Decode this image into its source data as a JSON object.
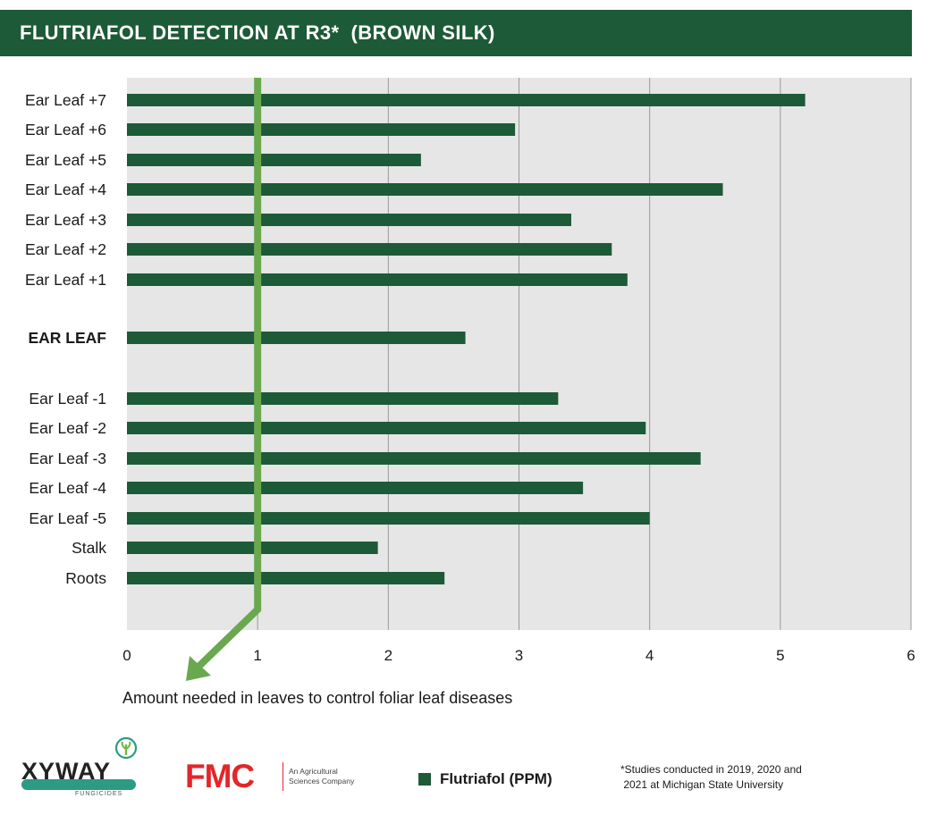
{
  "header": {
    "title": "FLUTRIAFOL DETECTION AT R3*  (BROWN SILK)"
  },
  "chart_data": {
    "type": "bar",
    "orientation": "horizontal",
    "title": "FLUTRIAFOL DETECTION AT R3*  (BROWN SILK)",
    "categories": [
      "Ear Leaf +7",
      "Ear Leaf +6",
      "Ear Leaf +5",
      "Ear Leaf +4",
      "Ear Leaf +3",
      "Ear Leaf +2",
      "Ear Leaf +1",
      "EAR LEAF",
      "Ear Leaf -1",
      "Ear Leaf -2",
      "Ear Leaf -3",
      "Ear Leaf -4",
      "Ear Leaf -5",
      "Stalk",
      "Roots"
    ],
    "bold_categories": [
      "EAR LEAF"
    ],
    "values": [
      5.19,
      2.97,
      2.25,
      4.56,
      3.4,
      3.71,
      3.83,
      2.59,
      3.3,
      3.97,
      4.39,
      3.49,
      4.0,
      1.92,
      2.43
    ],
    "series": [
      {
        "name": "Flutriafol (PPM)",
        "values": [
          5.19,
          2.97,
          2.25,
          4.56,
          3.4,
          3.71,
          3.83,
          2.59,
          3.3,
          3.97,
          4.39,
          3.49,
          4.0,
          1.92,
          2.43
        ]
      }
    ],
    "xlim": [
      0,
      6
    ],
    "xticks": [
      0,
      1,
      2,
      3,
      4,
      5,
      6
    ],
    "xlabel": "",
    "ylabel": "",
    "grid": true,
    "reference_line": {
      "x": 1,
      "label": "Amount needed in leaves to control foliar leaf diseases"
    },
    "legend_position": "bottom"
  },
  "legend": {
    "label": "Flutriafol (PPM)"
  },
  "footer": {
    "xyway_logo": "XYWAY",
    "xyway_sub": "FUNGICIDES",
    "fmc_logo": "FMC",
    "fmc_tagline_1": "An Agricultural",
    "fmc_tagline_2": "Sciences Company",
    "footnote_1": "*Studies conducted in 2019, 2020 and",
    "footnote_2": " 2021 at Michigan State University"
  },
  "colors": {
    "brand_green": "#1d5a37",
    "threshold_green": "#6aa84f",
    "plot_bg": "#e6e6e6",
    "fmc_red": "#e3262b",
    "xyway_teal": "#2d9b83"
  }
}
